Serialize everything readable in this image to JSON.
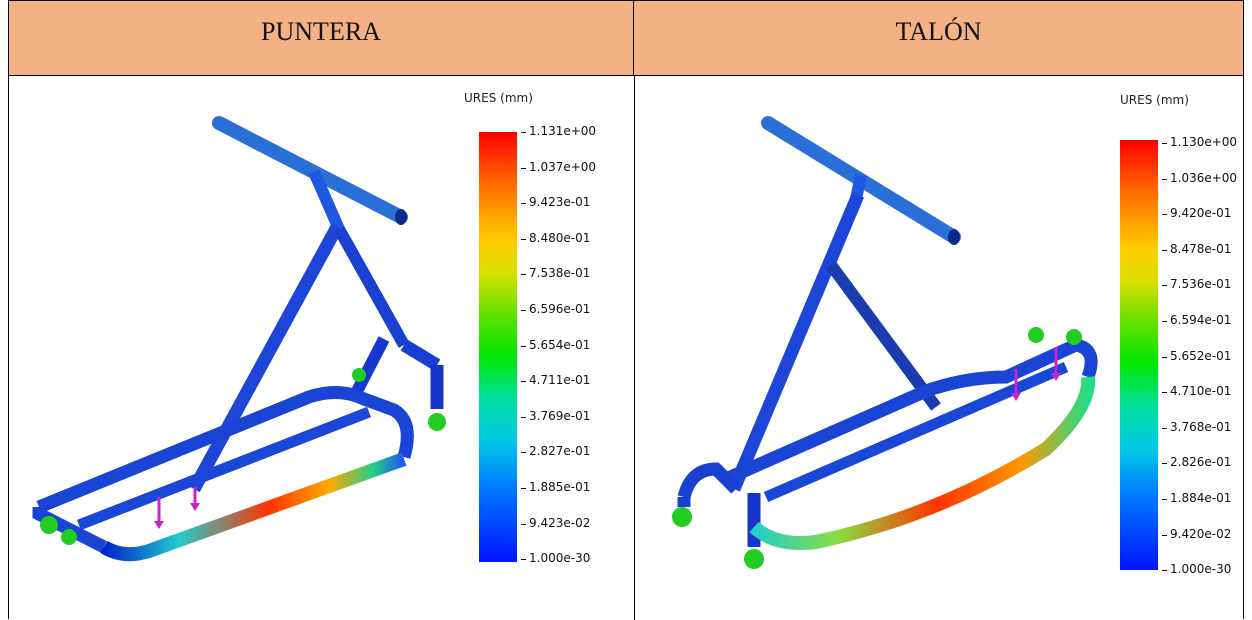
{
  "headers": {
    "left": "PUNTERA",
    "right": "TALÓN"
  },
  "left_legend": {
    "unit": "URES (mm)",
    "ticks": [
      "1.131e+00",
      "1.037e+00",
      "9.423e-01",
      "8.480e-01",
      "7.538e-01",
      "6.596e-01",
      "5.654e-01",
      "4.711e-01",
      "3.769e-01",
      "2.827e-01",
      "1.885e-01",
      "9.423e-02",
      "1.000e-30"
    ]
  },
  "right_legend": {
    "unit": "URES (mm)",
    "ticks": [
      "1.130e+00",
      "1.036e+00",
      "9.420e-01",
      "8.478e-01",
      "7.536e-01",
      "6.594e-01",
      "5.652e-01",
      "4.710e-01",
      "3.768e-01",
      "2.826e-01",
      "1.884e-01",
      "9.420e-02",
      "1.000e-30"
    ]
  },
  "colors": {
    "header_bg": "#f4b183",
    "frame_blue": "#1e4fd8",
    "constraint_green": "#22cc22",
    "load_magenta": "#cc22cc"
  }
}
